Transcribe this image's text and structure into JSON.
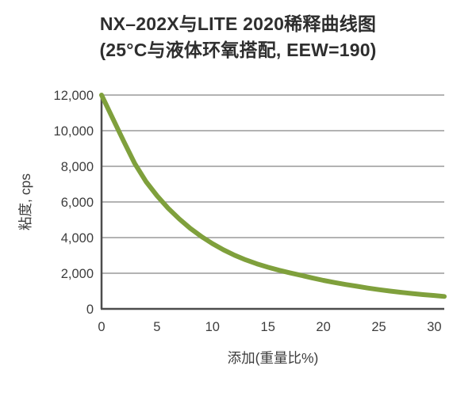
{
  "header": {
    "title_line1": "NX–202X与LITE 2020稀释曲线图",
    "title_line2": "(25°C与液体环氧搭配, EEW=190)"
  },
  "chart_data": {
    "type": "line",
    "title": "NX–202X与LITE 2020稀释曲线图",
    "subtitle": "(25°C与液体环氧搭配, EEW=190)",
    "xlabel": "添加(重量比%)",
    "ylabel": "粘度, cps",
    "xlim": [
      0,
      30.9
    ],
    "ylim": [
      0,
      12000
    ],
    "x_ticks": [
      0,
      5,
      10,
      15,
      20,
      25,
      30
    ],
    "x_tick_labels": [
      "0",
      "5",
      "10",
      "15",
      "20",
      "25",
      "30"
    ],
    "y_ticks": [
      0,
      2000,
      4000,
      6000,
      8000,
      10000,
      12000
    ],
    "y_tick_labels": [
      "0",
      "2,000",
      "4,000",
      "6,000",
      "8,000",
      "10,000",
      "12,000"
    ],
    "grid": "horizontal",
    "legend": "none",
    "series": [
      {
        "name": "NX-202X / LITE 2020 dilution curve",
        "color": "#7fa03c",
        "points": [
          [
            0,
            12000
          ],
          [
            1,
            10700
          ],
          [
            2,
            9400
          ],
          [
            3,
            8150
          ],
          [
            4,
            7150
          ],
          [
            5,
            6350
          ],
          [
            6,
            5650
          ],
          [
            7,
            5050
          ],
          [
            8,
            4520
          ],
          [
            9,
            4060
          ],
          [
            10,
            3660
          ],
          [
            11,
            3310
          ],
          [
            12,
            3010
          ],
          [
            13,
            2750
          ],
          [
            14,
            2530
          ],
          [
            15,
            2340
          ],
          [
            16,
            2170
          ],
          [
            17,
            2020
          ],
          [
            18,
            1880
          ],
          [
            19,
            1740
          ],
          [
            20,
            1600
          ],
          [
            21,
            1480
          ],
          [
            22,
            1370
          ],
          [
            23,
            1270
          ],
          [
            24,
            1170
          ],
          [
            25,
            1080
          ],
          [
            26,
            1000
          ],
          [
            27,
            930
          ],
          [
            28,
            860
          ],
          [
            29,
            800
          ],
          [
            30,
            750
          ],
          [
            30.9,
            700
          ]
        ]
      }
    ],
    "colors": {
      "curve": "#7fa03c",
      "gridline": "#9a9a9a",
      "axis": "#4d4d4d",
      "text": "#3d3d3d",
      "title_text": "#2e2e2e",
      "background": "#ffffff"
    }
  }
}
